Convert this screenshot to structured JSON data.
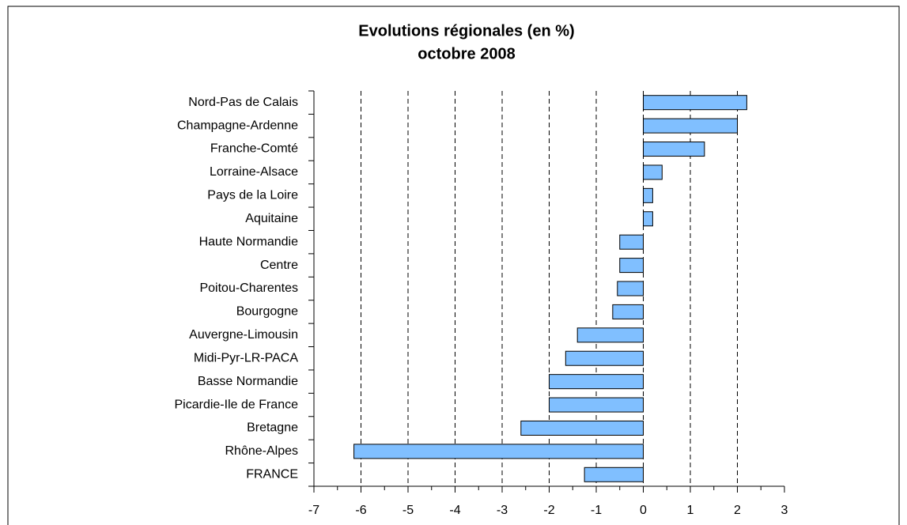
{
  "chart_data": {
    "type": "barh",
    "title": "Evolutions régionales (en %)",
    "subtitle": "octobre 2008",
    "categories": [
      "Nord-Pas de Calais",
      "Champagne-Ardenne",
      "Franche-Comté",
      "Lorraine-Alsace",
      "Pays de la Loire",
      "Aquitaine",
      "Haute Normandie",
      "Centre",
      "Poitou-Charentes",
      "Bourgogne",
      "Auvergne-Limousin",
      "Midi-Pyr-LR-PACA",
      "Basse Normandie",
      "Picardie-Ile de France",
      "Bretagne",
      "Rhône-Alpes",
      "FRANCE"
    ],
    "values": [
      2.2,
      2.0,
      1.3,
      0.4,
      0.2,
      0.2,
      -0.5,
      -0.5,
      -0.55,
      -0.65,
      -1.4,
      -1.65,
      -2.0,
      -2.0,
      -2.6,
      -6.15,
      -1.25
    ],
    "color": "#80bfff",
    "xlim": [
      -7,
      3
    ],
    "xticks": [
      -7,
      -6,
      -5,
      -4,
      -3,
      -2,
      -1,
      0,
      1,
      2,
      3
    ],
    "grid": true
  }
}
